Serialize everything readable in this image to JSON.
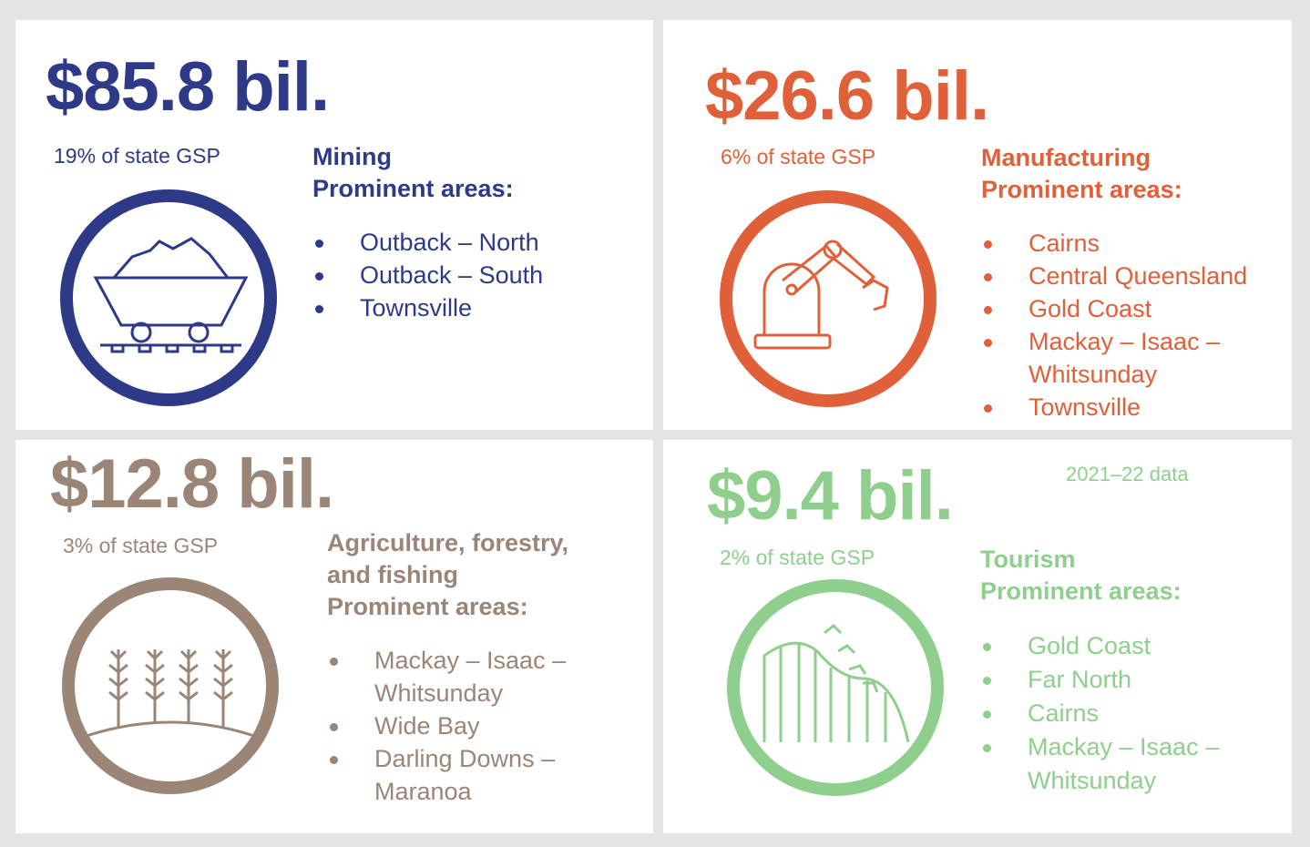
{
  "panels": [
    {
      "value": "$85.8 bil.",
      "share": "19% of state GSP",
      "industry": "Mining",
      "heading": "Prominent areas:",
      "areas": [
        "Outback – North",
        "Outback – South",
        "Townsville"
      ]
    },
    {
      "value": "$26.6 bil.",
      "share": "6% of state GSP",
      "industry": "Manufacturing",
      "heading": "Prominent areas:",
      "areas": [
        "Cairns",
        "Central Queensland",
        "Gold Coast",
        "Mackay – Isaac – Whitsunday",
        "Townsville"
      ]
    },
    {
      "value": "$12.8 bil.",
      "share": "3% of state GSP",
      "industry": "Agriculture, forestry, and fishing",
      "heading": "Prominent areas:",
      "areas": [
        "Mackay – Isaac – Whitsunday",
        "Wide Bay",
        "Darling Downs – Maranoa"
      ]
    },
    {
      "value": "$9.4 bil.",
      "share": "2% of state GSP",
      "industry": "Tourism",
      "heading": "Prominent areas:",
      "areas": [
        "Gold Coast",
        "Far North",
        "Cairns",
        "Mackay – Isaac – Whitsunday"
      ]
    }
  ],
  "note": "2021–22 data"
}
